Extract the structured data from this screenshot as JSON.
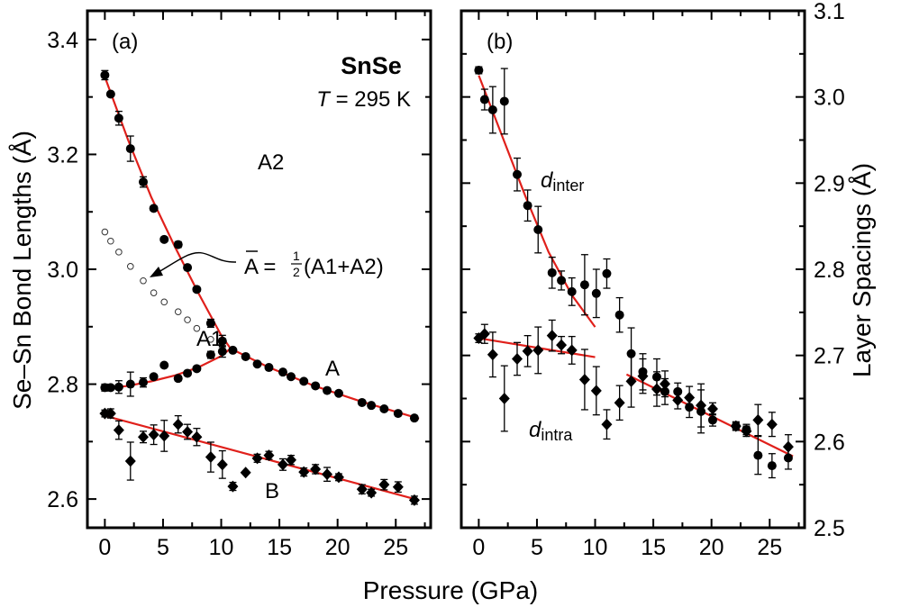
{
  "chart_data": [
    {
      "type": "scatter",
      "panel_label": "(a)",
      "title": "SnSe",
      "subtitle_T": "T",
      "subtitle_rest": " = 295 K",
      "xlabel": "Pressure (GPa)",
      "ylabel": "Se–Sn Bond Lengths (Å)",
      "xlim": [
        -1.5,
        28
      ],
      "ylim": [
        2.55,
        3.45
      ],
      "xticks": [
        0,
        5,
        10,
        15,
        20,
        25
      ],
      "yticks": [
        2.6,
        2.8,
        3.0,
        3.2,
        3.4
      ],
      "ytick_labels": [
        "2.6",
        "2.8",
        "3.0",
        "3.2",
        "3.4"
      ],
      "colors": {
        "markers": "#000000",
        "fit": "#e0201b"
      },
      "series": [
        {
          "name": "A2",
          "marker": "circle",
          "x": [
            0,
            0.5,
            1.2,
            2.2,
            3.3,
            4.2,
            5.1,
            6.3,
            7.1,
            7.9,
            9.1,
            10.1
          ],
          "y": [
            3.338,
            3.305,
            3.263,
            3.21,
            3.152,
            3.106,
            3.052,
            3.043,
            3.003,
            2.965,
            2.906,
            2.875
          ],
          "err": [
            0.008,
            0,
            0.012,
            0.022,
            0.009,
            0.004,
            0,
            0.005,
            0,
            0,
            0.007,
            0.01
          ]
        },
        {
          "name": "A1",
          "marker": "circle",
          "x": [
            0,
            0.5,
            1.2,
            2.2,
            3.3,
            4.2,
            5.1,
            6.3,
            7.1,
            7.9,
            9.1,
            10.1
          ],
          "y": [
            2.794,
            2.794,
            2.795,
            2.8,
            2.803,
            2.813,
            2.833,
            2.81,
            2.819,
            2.827,
            2.851,
            2.857
          ],
          "err": [
            0.006,
            0,
            0.011,
            0.021,
            0.008,
            0.004,
            0,
            0.004,
            0,
            0,
            0.006,
            0.01
          ]
        },
        {
          "name": "A",
          "marker": "circle",
          "x": [
            11.0,
            12.1,
            13.1,
            14.1,
            15.3,
            16.0,
            17.1,
            18.1,
            19.1,
            20.1,
            22.1,
            22.9,
            24.0,
            25.2,
            26.6
          ],
          "y": [
            2.859,
            2.848,
            2.835,
            2.829,
            2.821,
            2.813,
            2.805,
            2.797,
            2.789,
            2.784,
            2.768,
            2.763,
            2.757,
            2.749,
            2.741
          ],
          "err": [
            0,
            0,
            0,
            0,
            0,
            0,
            0,
            0,
            0,
            0,
            0,
            0,
            0,
            0,
            0
          ]
        },
        {
          "name": "Ā = ½(A1+A2)",
          "marker": "open-circle",
          "x": [
            0,
            0.5,
            1.2,
            2.2,
            3.3,
            4.2,
            5.1,
            6.3,
            7.1,
            7.9,
            9.1
          ],
          "y": [
            3.065,
            3.049,
            3.03,
            3.005,
            2.98,
            2.959,
            2.943,
            2.926,
            2.912,
            2.897,
            2.878
          ],
          "err": [
            0,
            0,
            0,
            0,
            0,
            0,
            0,
            0,
            0,
            0,
            0
          ]
        },
        {
          "name": "B",
          "marker": "diamond",
          "x": [
            0,
            0.5,
            1.2,
            2.2,
            3.3,
            4.2,
            5.1,
            6.3,
            7.1,
            7.9,
            9.1,
            10.1,
            11.0,
            12.1,
            13.1,
            14.1,
            15.3,
            16.0,
            17.1,
            18.1,
            19.1,
            20.1,
            22.1,
            22.9,
            24.0,
            25.2,
            26.6
          ],
          "y": [
            2.749,
            2.749,
            2.72,
            2.666,
            2.708,
            2.712,
            2.71,
            2.73,
            2.717,
            2.708,
            2.673,
            2.66,
            2.622,
            2.646,
            2.671,
            2.676,
            2.66,
            2.668,
            2.647,
            2.652,
            2.643,
            2.638,
            2.617,
            2.611,
            2.625,
            2.621,
            2.598
          ],
          "err": [
            0.006,
            0.008,
            0.016,
            0.033,
            0.01,
            0.017,
            0.027,
            0.015,
            0.013,
            0.015,
            0.026,
            0.024,
            0.007,
            0,
            0.007,
            0.007,
            0.01,
            0.008,
            0.007,
            0.008,
            0.012,
            0.006,
            0.008,
            0.006,
            0.009,
            0.009,
            0.007
          ]
        }
      ],
      "fits": [
        {
          "x": [
            0,
            2,
            4,
            6,
            8,
            10,
            10.8
          ],
          "y": [
            3.335,
            3.225,
            3.125,
            3.04,
            2.96,
            2.885,
            2.862
          ]
        },
        {
          "x": [
            0,
            2,
            4,
            6,
            8,
            10,
            10.8
          ],
          "y": [
            2.792,
            2.797,
            2.805,
            2.815,
            2.829,
            2.849,
            2.862
          ]
        },
        {
          "x": [
            10.8,
            14,
            18,
            22,
            27
          ],
          "y": [
            2.862,
            2.83,
            2.797,
            2.77,
            2.74
          ]
        },
        {
          "x": [
            0,
            27
          ],
          "y": [
            2.745,
            2.598
          ]
        }
      ],
      "annotations": {
        "A2": "A2",
        "A1": "A1",
        "A": "A",
        "B": "B",
        "Abar": "A",
        "Abar_eq": " = ",
        "Abar_frac_num": "1",
        "Abar_frac_den": "2",
        "Abar_rest": "(A1+A2)"
      }
    },
    {
      "type": "scatter",
      "panel_label": "(b)",
      "ylabel": "Layer Spacings (Å)",
      "xlim": [
        -1.5,
        28
      ],
      "ylim": [
        2.5,
        3.1
      ],
      "xticks": [
        0,
        5,
        10,
        15,
        20,
        25
      ],
      "yticks": [
        2.5,
        2.6,
        2.7,
        2.8,
        2.9,
        3.0,
        3.1
      ],
      "ytick_labels": [
        "2.5",
        "2.6",
        "2.7",
        "2.8",
        "2.9",
        "3.0",
        "3.1"
      ],
      "series": [
        {
          "name": "d_inter",
          "marker": "circle",
          "x": [
            0,
            0.5,
            1.2,
            2.2,
            3.3,
            4.2,
            5.1,
            6.3,
            7.1,
            8.0,
            9.1,
            10.1,
            11.0,
            12.1,
            13.1,
            14.1,
            15.3,
            16.0,
            17.1,
            18.1,
            19.1,
            20.1,
            22.1,
            23.0,
            24.0,
            25.2,
            26.6
          ],
          "y": [
            3.031,
            2.997,
            2.985,
            2.995,
            2.91,
            2.874,
            2.846,
            2.796,
            2.787,
            2.774,
            2.782,
            2.772,
            2.795,
            2.747,
            2.702,
            2.681,
            2.675,
            2.658,
            2.658,
            2.64,
            2.635,
            2.625,
            2.618,
            2.614,
            2.584,
            2.572,
            2.581
          ],
          "err": [
            0.004,
            0.012,
            0.027,
            0.038,
            0.019,
            0.018,
            0.027,
            0.018,
            0.011,
            0.016,
            0.035,
            0.028,
            0.017,
            0.02,
            0.03,
            0.021,
            0.021,
            0.015,
            0.01,
            0.012,
            0.025,
            0.007,
            0.004,
            0.006,
            0.022,
            0.014,
            0.013
          ]
        },
        {
          "name": "d_intra",
          "marker": "diamond",
          "x": [
            0,
            0.5,
            1.2,
            2.2,
            3.3,
            4.2,
            5.1,
            6.3,
            7.1,
            8.0,
            9.1,
            10.1,
            11.0,
            12.1,
            13.1,
            14.1,
            15.3,
            16.0,
            17.1,
            18.1,
            19.1,
            20.1,
            22.1,
            23.0,
            24.0,
            25.2,
            26.6
          ],
          "y": [
            2.72,
            2.725,
            2.701,
            2.65,
            2.696,
            2.705,
            2.706,
            2.723,
            2.712,
            2.706,
            2.672,
            2.659,
            2.62,
            2.645,
            2.67,
            2.676,
            2.661,
            2.667,
            2.648,
            2.651,
            2.642,
            2.638,
            2.618,
            2.612,
            2.625,
            2.62,
            2.594
          ],
          "err": [
            0.005,
            0.011,
            0.026,
            0.038,
            0.019,
            0.018,
            0.027,
            0.018,
            0.01,
            0.016,
            0.035,
            0.028,
            0.017,
            0.02,
            0.03,
            0.02,
            0.02,
            0.015,
            0.01,
            0.013,
            0.025,
            0.007,
            0.005,
            0.006,
            0.018,
            0.014,
            0.014
          ]
        }
      ],
      "fits": [
        {
          "x": [
            0,
            2,
            4,
            6,
            8,
            10
          ],
          "y": [
            3.025,
            2.955,
            2.885,
            2.82,
            2.77,
            2.733
          ]
        },
        {
          "x": [
            0,
            10
          ],
          "y": [
            2.72,
            2.698
          ]
        },
        {
          "x": [
            12.7,
            27
          ],
          "y": [
            2.678,
            2.583
          ]
        }
      ],
      "annotations": {
        "d_inter_d": "d",
        "d_inter_sub": "inter",
        "d_intra_d": "d",
        "d_intra_sub": "intra"
      }
    }
  ]
}
